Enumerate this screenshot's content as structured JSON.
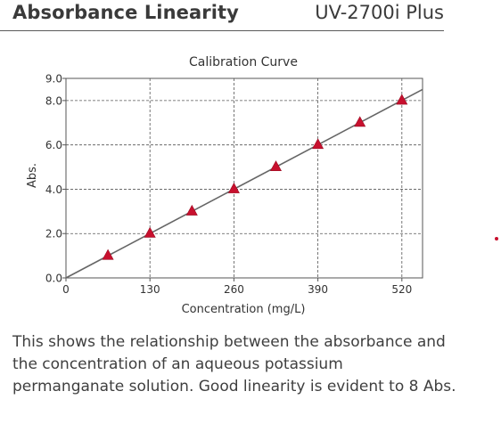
{
  "header": {
    "title": "Absorbance Linearity",
    "model": "UV-2700i Plus"
  },
  "chart_data": {
    "type": "scatter",
    "title": "Calibration Curve",
    "xlabel": "Concentration (mg/L)",
    "ylabel": "Abs.",
    "xlim": [
      0,
      552
    ],
    "ylim": [
      0,
      9.0
    ],
    "xticks": [
      0,
      130,
      260,
      390,
      520
    ],
    "xtick_labels": [
      "0",
      "130",
      "260",
      "390",
      "520"
    ],
    "yticks": [
      0,
      2.0,
      4.0,
      6.0,
      8.0,
      9.0
    ],
    "ytick_labels": [
      "0.0",
      "2.0",
      "4.0",
      "6.0",
      "8.0",
      "9.0"
    ],
    "grid": true,
    "series": [
      {
        "marker": "triangle",
        "color": "#c8102e",
        "points": [
          {
            "x": 65,
            "y": 1.0
          },
          {
            "x": 130,
            "y": 2.0
          },
          {
            "x": 195,
            "y": 3.0
          },
          {
            "x": 260,
            "y": 4.0
          },
          {
            "x": 325,
            "y": 5.0
          },
          {
            "x": 390,
            "y": 6.0
          },
          {
            "x": 455,
            "y": 7.0
          },
          {
            "x": 520,
            "y": 8.0
          }
        ]
      }
    ],
    "fit_line": {
      "color": "#666666",
      "x_start": 0,
      "y_start": 0.0,
      "x_end": 552,
      "y_end": 8.5
    }
  },
  "description": "This shows the relationship between the absorbance and the concentration of an aqueous potassium permanganate solution. Good linearity is evident to 8 Abs.",
  "colors": {
    "accent": "#c8102e",
    "text": "#3b3b3b",
    "grid": "#555555"
  }
}
